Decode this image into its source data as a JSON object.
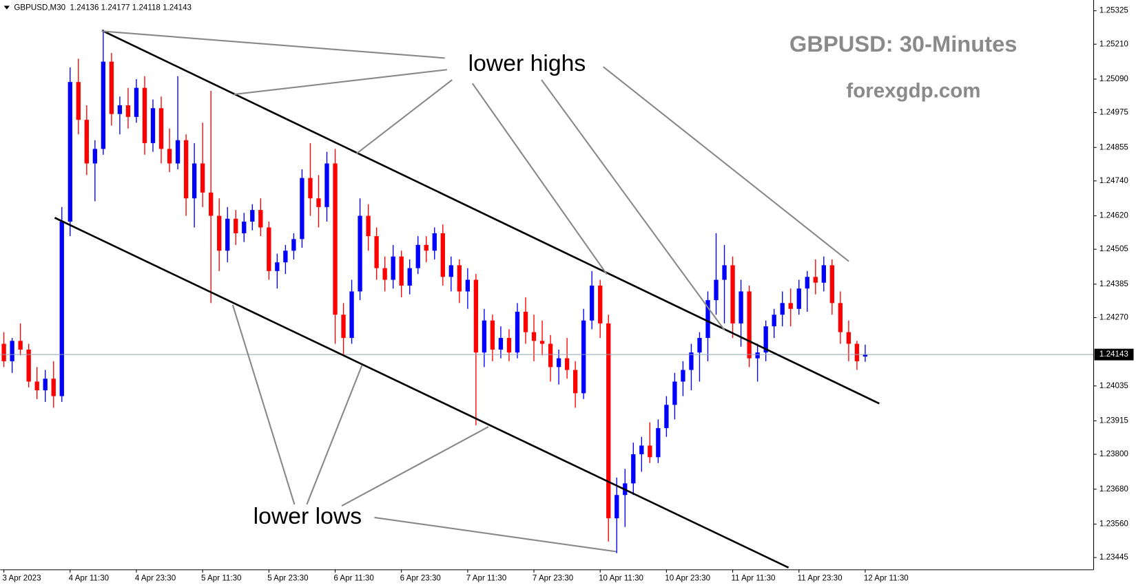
{
  "chart_data": {
    "type": "candlestick",
    "title": "GBPUSD,M30  1.24136 1.24177 1.24118 1.24143",
    "watermark_title": "GBPUSD: 30-Minutes",
    "watermark_site": "forexgdp.com",
    "annotations": [
      "lower highs",
      "lower lows"
    ],
    "current_price": 1.24143,
    "up_color": "#0000ff",
    "down_color": "#ff0000",
    "categories": [
      "3 Apr 2023",
      null,
      null,
      null,
      null,
      null,
      null,
      null,
      "4 Apr 11:30",
      null,
      null,
      null,
      null,
      null,
      null,
      null,
      "4 Apr 23:30",
      null,
      null,
      null,
      null,
      null,
      null,
      null,
      "5 Apr 11:30",
      null,
      null,
      null,
      null,
      null,
      null,
      null,
      "5 Apr 23:30",
      null,
      null,
      null,
      null,
      null,
      null,
      null,
      "6 Apr 11:30",
      null,
      null,
      null,
      null,
      null,
      null,
      null,
      "6 Apr 23:30",
      null,
      null,
      null,
      null,
      null,
      null,
      null,
      "7 Apr 11:30",
      null,
      null,
      null,
      null,
      null,
      null,
      null,
      "7 Apr 23:30",
      null,
      null,
      null,
      null,
      null,
      null,
      null,
      "10 Apr 11:30",
      null,
      null,
      null,
      null,
      null,
      null,
      null,
      "10 Apr 23:30",
      null,
      null,
      null,
      null,
      null,
      null,
      null,
      "11 Apr 11:30",
      null,
      null,
      null,
      null,
      null,
      null,
      null,
      "11 Apr 23:30",
      null,
      null,
      null,
      null,
      null,
      null,
      null,
      "12 Apr 11:30"
    ],
    "ohlc": {
      "open": [
        1.2418,
        1.2412,
        1.2419,
        1.2416,
        1.2405,
        1.2402,
        1.2406,
        1.24,
        1.246,
        1.2508,
        1.2495,
        1.248,
        1.2485,
        1.2515,
        1.2497,
        1.25,
        1.2496,
        1.2506,
        1.2487,
        1.2499,
        1.2485,
        1.248,
        1.2488,
        1.2468,
        1.248,
        1.247,
        1.2462,
        1.245,
        1.2461,
        1.2456,
        1.246,
        1.2464,
        1.2458,
        1.2443,
        1.2446,
        1.245,
        1.2454,
        1.2475,
        1.2468,
        1.2465,
        1.248,
        1.2428,
        1.242,
        1.2436,
        1.2462,
        1.2455,
        1.2444,
        1.244,
        1.2448,
        1.2438,
        1.2444,
        1.2452,
        1.245,
        1.2456,
        1.2441,
        1.2445,
        1.2436,
        1.244,
        1.2415,
        1.2426,
        1.2416,
        1.242,
        1.2415,
        1.2429,
        1.2422,
        1.2419,
        1.2418,
        1.241,
        1.2413,
        1.2409,
        1.2401,
        1.2426,
        1.2438,
        1.2425,
        1.2358,
        1.2366,
        1.237,
        1.238,
        1.2383,
        1.2379,
        1.2389,
        1.2397,
        1.2405,
        1.2409,
        1.2415,
        1.242,
        1.2433,
        1.244,
        1.2445,
        1.2425,
        1.2436,
        1.2413,
        1.2415,
        1.2424,
        1.2428,
        1.2432,
        1.243,
        1.2437,
        1.2441,
        1.2439,
        1.2445,
        1.2432,
        1.2422,
        1.2418,
        1.24136
      ],
      "high": [
        1.2422,
        1.242,
        1.2425,
        1.2418,
        1.241,
        1.2409,
        1.2412,
        1.2465,
        1.2513,
        1.2516,
        1.25,
        1.2488,
        1.2526,
        1.2518,
        1.2503,
        1.2506,
        1.2509,
        1.251,
        1.2502,
        1.2503,
        1.2492,
        1.251,
        1.249,
        1.2487,
        1.2494,
        1.2505,
        1.2468,
        1.2465,
        1.2464,
        1.2463,
        1.2466,
        1.2468,
        1.246,
        1.2449,
        1.2452,
        1.2456,
        1.2478,
        1.2487,
        1.2476,
        1.2484,
        1.2485,
        1.2432,
        1.244,
        1.2468,
        1.2466,
        1.2458,
        1.2448,
        1.2452,
        1.245,
        1.2447,
        1.2455,
        1.2455,
        1.2458,
        1.2459,
        1.2448,
        1.2447,
        1.2444,
        1.2442,
        1.243,
        1.2428,
        1.2424,
        1.2423,
        1.2432,
        1.2434,
        1.2428,
        1.2426,
        1.2421,
        1.2416,
        1.242,
        1.2412,
        1.243,
        1.2443,
        1.244,
        1.2428,
        1.2372,
        1.2375,
        1.2384,
        1.2386,
        1.2391,
        1.2392,
        1.24,
        1.2408,
        1.2412,
        1.2418,
        1.2422,
        1.2436,
        1.2456,
        1.2452,
        1.2448,
        1.244,
        1.2438,
        1.2418,
        1.2426,
        1.243,
        1.2436,
        1.2437,
        1.244,
        1.2443,
        1.2447,
        1.2448,
        1.2447,
        1.2436,
        1.2426,
        1.2419,
        1.24177
      ],
      "low": [
        1.241,
        1.2408,
        1.2414,
        1.2403,
        1.2399,
        1.2398,
        1.2396,
        1.2398,
        1.2455,
        1.249,
        1.2476,
        1.2467,
        1.2483,
        1.2493,
        1.249,
        1.2492,
        1.2494,
        1.2483,
        1.2484,
        1.248,
        1.2477,
        1.2478,
        1.2462,
        1.2458,
        1.2465,
        1.2432,
        1.2443,
        1.2446,
        1.2452,
        1.2453,
        1.2457,
        1.2455,
        1.244,
        1.2437,
        1.2442,
        1.2447,
        1.2451,
        1.2462,
        1.2458,
        1.246,
        1.2418,
        1.2414,
        1.2418,
        1.2433,
        1.245,
        1.244,
        1.2436,
        1.2437,
        1.2434,
        1.2435,
        1.2442,
        1.2446,
        1.2447,
        1.2438,
        1.2436,
        1.2432,
        1.243,
        1.239,
        1.241,
        1.2412,
        1.2413,
        1.2412,
        1.2413,
        1.2418,
        1.2412,
        1.2414,
        1.2405,
        1.2404,
        1.2406,
        1.2396,
        1.2399,
        1.2423,
        1.242,
        1.235,
        1.2346,
        1.2355,
        1.2366,
        1.2374,
        1.2377,
        1.2377,
        1.2386,
        1.2392,
        1.24,
        1.2402,
        1.2405,
        1.2412,
        1.2428,
        1.2425,
        1.242,
        1.2417,
        1.241,
        1.2405,
        1.2412,
        1.242,
        1.2424,
        1.2424,
        1.2428,
        1.2429,
        1.2435,
        1.2436,
        1.2428,
        1.2418,
        1.2412,
        1.2409,
        1.24118
      ],
      "close": [
        1.2412,
        1.2419,
        1.2416,
        1.2405,
        1.2402,
        1.2406,
        1.24,
        1.246,
        1.2508,
        1.2495,
        1.248,
        1.2485,
        1.2515,
        1.2497,
        1.25,
        1.2496,
        1.2506,
        1.2487,
        1.2499,
        1.2485,
        1.248,
        1.2488,
        1.2468,
        1.248,
        1.247,
        1.2462,
        1.245,
        1.2461,
        1.2456,
        1.246,
        1.2464,
        1.2458,
        1.2443,
        1.2446,
        1.245,
        1.2454,
        1.2475,
        1.2468,
        1.2465,
        1.248,
        1.2428,
        1.242,
        1.2436,
        1.2462,
        1.2455,
        1.2444,
        1.244,
        1.2448,
        1.2438,
        1.2444,
        1.2452,
        1.245,
        1.2456,
        1.2441,
        1.2445,
        1.2436,
        1.244,
        1.2415,
        1.2426,
        1.2416,
        1.242,
        1.2415,
        1.2429,
        1.2422,
        1.2419,
        1.2418,
        1.241,
        1.2413,
        1.2409,
        1.2401,
        1.2426,
        1.2438,
        1.2425,
        1.2358,
        1.2366,
        1.237,
        1.238,
        1.2383,
        1.2379,
        1.2389,
        1.2397,
        1.2405,
        1.2409,
        1.2415,
        1.242,
        1.2433,
        1.244,
        1.2445,
        1.2425,
        1.2436,
        1.2413,
        1.2415,
        1.2424,
        1.2428,
        1.2432,
        1.243,
        1.2437,
        1.2441,
        1.2439,
        1.2445,
        1.2432,
        1.2422,
        1.2418,
        1.2412,
        1.24143
      ]
    },
    "ylim": [
      1.23403,
      1.25362
    ],
    "yticks": [
      1.25325,
      {
        "value": 1.2521,
        "label": "1.25210"
      },
      {
        "value": 1.2509,
        "label": "1.25090"
      },
      1.24975,
      1.24855,
      {
        "value": 1.2474,
        "label": "1.24740"
      },
      {
        "value": 1.2462,
        "label": "1.24620"
      },
      1.24505,
      1.24385,
      {
        "value": 1.2427,
        "label": "1.24270"
      },
      1.24035,
      1.23915,
      {
        "value": 1.238,
        "label": "1.23800"
      },
      {
        "value": 1.2368,
        "label": "1.23680"
      },
      {
        "value": 1.2356,
        "label": "1.23560"
      },
      1.23445
    ],
    "grid": false
  }
}
